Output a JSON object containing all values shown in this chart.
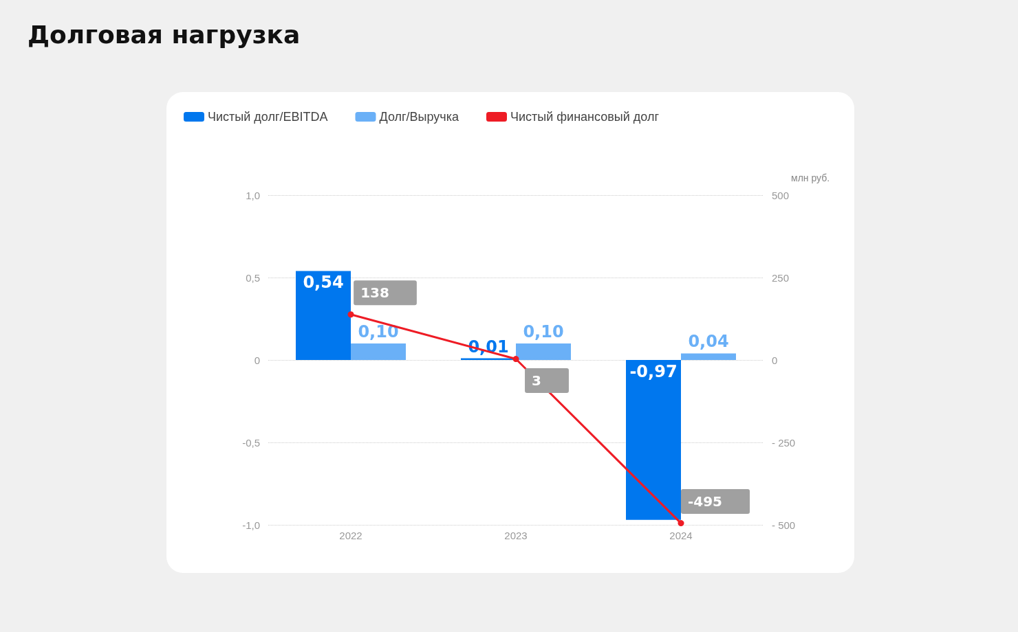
{
  "chart_data": {
    "type": "bar",
    "title": "Долговая нагрузка",
    "categories": [
      "2022",
      "2023",
      "2024"
    ],
    "series": [
      {
        "name": "Чистый долг/EBITDA",
        "color": "#0077ee",
        "values": [
          0.54,
          0.01,
          -0.97
        ],
        "value_labels": [
          "0,54",
          "0,01",
          "-0,97"
        ]
      },
      {
        "name": "Долг/Выручка",
        "color": "#6ab0f7",
        "values": [
          0.1,
          0.1,
          0.04
        ],
        "value_labels": [
          "0,10",
          "0,10",
          "0,04"
        ]
      },
      {
        "name": "Чистый финансовый долг",
        "type": "line",
        "axis": "y2",
        "color": "#ee1c25",
        "values": [
          138,
          3,
          -495
        ]
      }
    ],
    "ylim": [
      -1,
      1
    ],
    "yticks": [
      {
        "value": -1,
        "label": "-1,0"
      },
      {
        "value": -0.5,
        "label": "-0,5"
      },
      0,
      {
        "value": 0.5,
        "label": "0,5"
      },
      {
        "value": 1,
        "label": "1,0"
      }
    ],
    "y2lim": [
      -500,
      500
    ],
    "y2ticks": [
      {
        "value": -500,
        "label": "- 500"
      },
      {
        "value": -250,
        "label": "- 250"
      },
      0,
      250,
      500
    ],
    "y2label": "млн руб.",
    "grid": "y",
    "legend": "top left",
    "data_labels": true,
    "marker": "circle"
  }
}
